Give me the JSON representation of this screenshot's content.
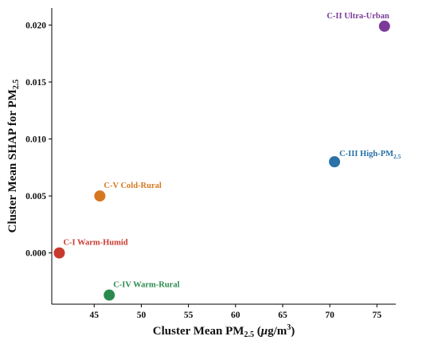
{
  "chart_data": {
    "type": "scatter",
    "xlabel_parts": [
      "Cluster Mean PM",
      "2.5",
      " (",
      "μ",
      "g/m",
      "3",
      ")"
    ],
    "ylabel_parts": [
      "Cluster Mean SHAP for PM",
      "2.5"
    ],
    "xlim": [
      40.5,
      77
    ],
    "ylim": [
      -0.0045,
      0.0215
    ],
    "xticks": [
      45,
      50,
      55,
      60,
      65,
      70,
      75
    ],
    "xtick_labels": [
      "45",
      "50",
      "55",
      "60",
      "65",
      "70",
      "75"
    ],
    "yticks": [
      0.0,
      0.005,
      0.01,
      0.015,
      0.02
    ],
    "ytick_labels": [
      "0.000",
      "0.005",
      "0.010",
      "0.015",
      "0.020"
    ],
    "grid": false,
    "points": [
      {
        "label": "C-I  Warm-Humid",
        "label_sub": "",
        "x": 41.3,
        "y": 0.0,
        "color": "#c83a30",
        "label_pos": "above-right"
      },
      {
        "label": "C-II  Ultra-Urban",
        "label_sub": "",
        "x": 75.8,
        "y": 0.0199,
        "color": "#7b3a9a",
        "label_pos": "above-left"
      },
      {
        "label": "C-III  High-PM",
        "label_sub": "2.5",
        "x": 70.5,
        "y": 0.008,
        "color": "#2a72a8",
        "label_pos": "right"
      },
      {
        "label": "C-IV  Warm-Rural",
        "label_sub": "",
        "x": 46.6,
        "y": -0.0037,
        "color": "#2a8a4e",
        "label_pos": "above-right"
      },
      {
        "label": "C-V  Cold-Rural",
        "label_sub": "",
        "x": 45.6,
        "y": 0.005,
        "color": "#d6781f",
        "label_pos": "above-right"
      }
    ]
  }
}
